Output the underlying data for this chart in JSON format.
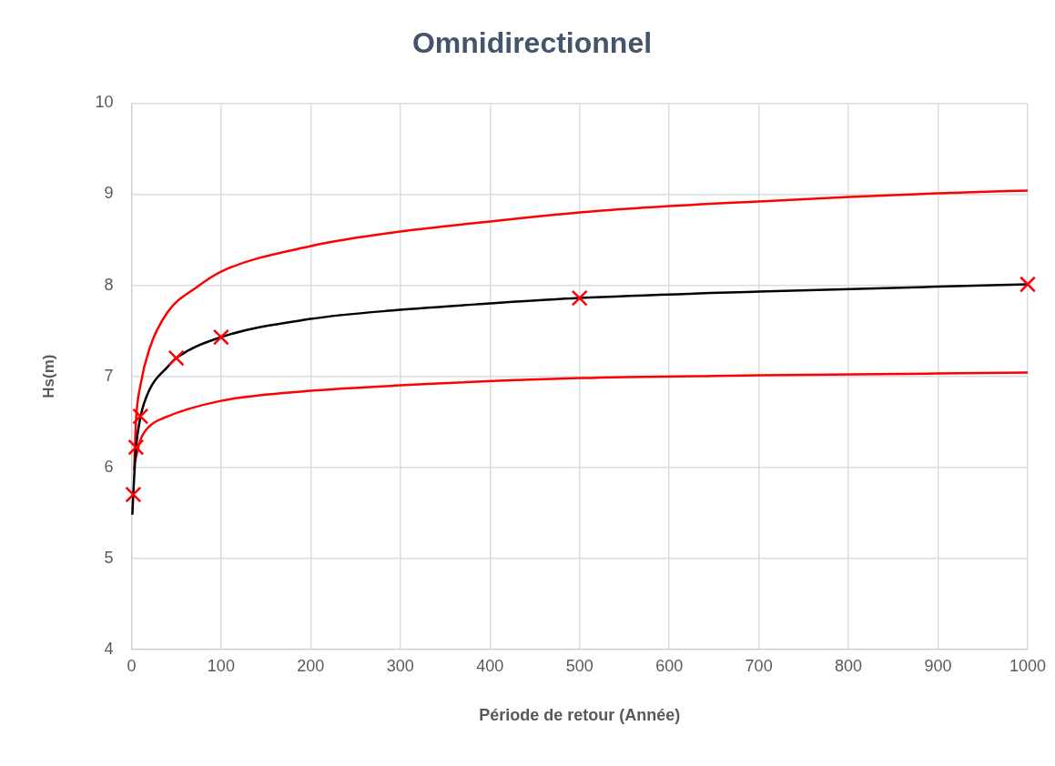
{
  "chart_data": {
    "type": "line",
    "title": "Omnidirectionnel",
    "xlabel": "Période de retour (Année)",
    "ylabel": "Hs(m)",
    "xlim": [
      0,
      1000
    ],
    "xticks": [
      0,
      100,
      200,
      300,
      400,
      500,
      600,
      700,
      800,
      900,
      1000
    ],
    "ylim": [
      4,
      10
    ],
    "yticks": [
      4,
      5,
      6,
      7,
      8,
      9,
      10
    ],
    "grid": true,
    "legend": false,
    "series": [
      {
        "color": "#000000",
        "marker": "none",
        "x": [
          1,
          2,
          5,
          10,
          20,
          40,
          50,
          100,
          200,
          300,
          400,
          500,
          700,
          1000
        ],
        "values": [
          5.48,
          5.7,
          6.2,
          6.55,
          6.85,
          7.1,
          7.2,
          7.43,
          7.63,
          7.73,
          7.8,
          7.86,
          7.93,
          8.01
        ]
      },
      {
        "color": "#ff0000",
        "marker": "none",
        "x": [
          3,
          5,
          10,
          20,
          40,
          73,
          100,
          200,
          300,
          400,
          500,
          600,
          700,
          800,
          900,
          1000
        ],
        "values": [
          5.96,
          6.5,
          6.9,
          7.3,
          7.7,
          7.98,
          8.15,
          8.43,
          8.59,
          8.7,
          8.8,
          8.87,
          8.92,
          8.97,
          9.01,
          9.04
        ]
      },
      {
        "color": "#ff0000",
        "marker": "none",
        "x": [
          4,
          10,
          20,
          38,
          100,
          200,
          300,
          500,
          700,
          1000
        ],
        "values": [
          6.07,
          6.3,
          6.45,
          6.55,
          6.73,
          6.84,
          6.9,
          6.98,
          7.01,
          7.04
        ]
      },
      {
        "type": "scatter",
        "color": "#ff0000",
        "marker": "cross",
        "x": [
          2,
          5,
          10,
          50,
          100,
          500,
          1000
        ],
        "values": [
          5.7,
          6.22,
          6.56,
          7.2,
          7.43,
          7.86,
          8.01
        ]
      }
    ]
  }
}
